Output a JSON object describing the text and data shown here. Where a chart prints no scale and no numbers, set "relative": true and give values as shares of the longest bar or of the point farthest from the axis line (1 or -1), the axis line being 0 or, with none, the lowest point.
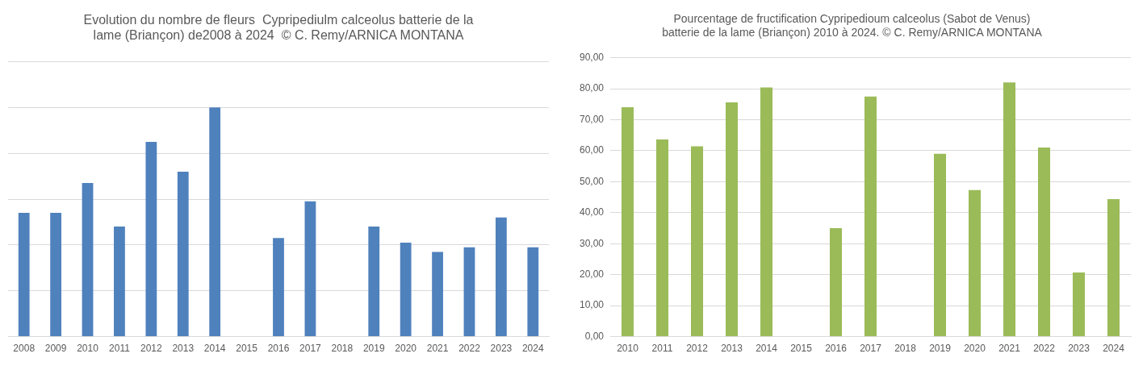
{
  "chart_data": [
    {
      "type": "bar",
      "title": "Evolution du nombre de fleurs  Cypripediulm calceolus batterie de la\nlame (Briançon) de2008 à 2024  © C. Remy/ARNICA MONTANA",
      "categories": [
        "2008",
        "2009",
        "2010",
        "2011",
        "2012",
        "2013",
        "2014",
        "2015",
        "2016",
        "2017",
        "2018",
        "2019",
        "2020",
        "2021",
        "2022",
        "2023",
        "2024"
      ],
      "relative": true,
      "grid": "y",
      "series": [
        {
          "color": "#4f81bd",
          "values": [
            0.54,
            0.54,
            0.67,
            0.48,
            0.85,
            0.72,
            1,
            null,
            0.43,
            0.59,
            null,
            0.48,
            0.41,
            0.37,
            0.39,
            0.52,
            0.39
          ]
        }
      ]
    },
    {
      "type": "bar",
      "title": "Pourcentage de fructification Cypripedioum calceolus (Sabot de Venus)\nbatterie de la lame (Briançon) 2010 à 2024. © C. Remy/ARNICA MONTANA",
      "categories": [
        "2010",
        "2011",
        "2012",
        "2013",
        "2014",
        "2015",
        "2016",
        "2017",
        "2018",
        "2019",
        "2020",
        "2021",
        "2022",
        "2023",
        "2024"
      ],
      "ylim": [
        0,
        90
      ],
      "yticks": [
        {
          "value": 0,
          "label": "0,00"
        },
        {
          "value": 10,
          "label": "10,00"
        },
        {
          "value": 20,
          "label": "20,00"
        },
        {
          "value": 30,
          "label": "30,00"
        },
        {
          "value": 40,
          "label": "40,00"
        },
        {
          "value": 50,
          "label": "50,00"
        },
        {
          "value": 60,
          "label": "60,00"
        },
        {
          "value": 70,
          "label": "70,00"
        },
        {
          "value": 80,
          "label": "80,00"
        },
        {
          "value": 90,
          "label": "90,00"
        }
      ],
      "grid": "y",
      "series": [
        {
          "color": "#9bbb59",
          "values": [
            74,
            63.6,
            61.4,
            75.6,
            80.4,
            null,
            35,
            77.5,
            null,
            59,
            47.3,
            82,
            61,
            20.7,
            44.4
          ]
        }
      ]
    }
  ]
}
